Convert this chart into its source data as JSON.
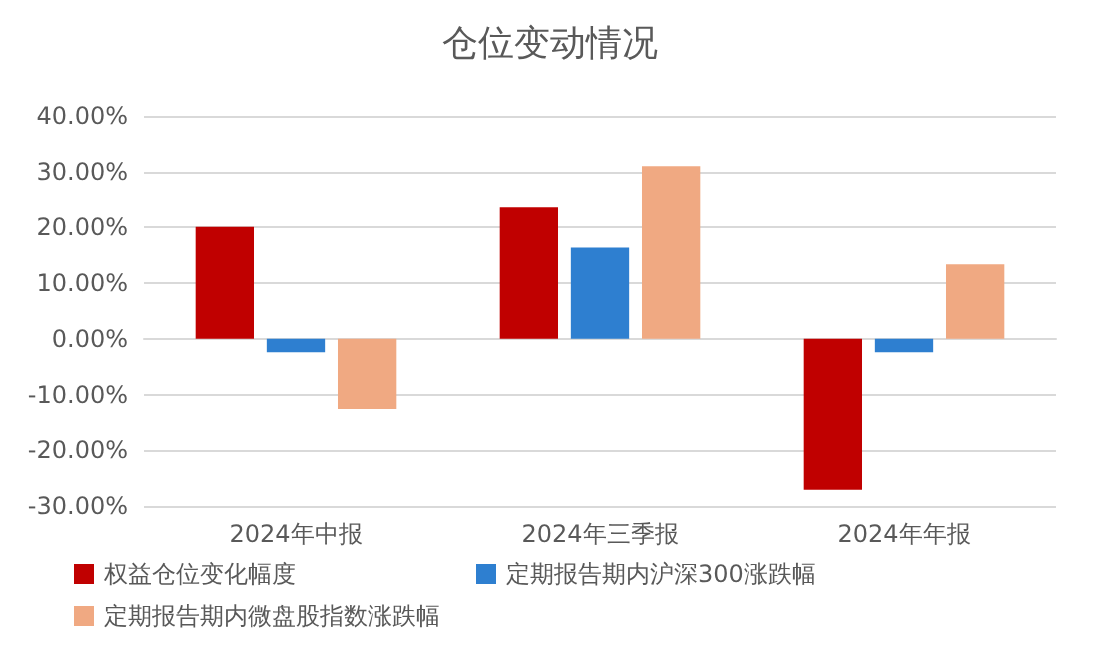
{
  "chart_data": {
    "type": "bar",
    "title": "仓位变动情况",
    "categories": [
      "2024年中报",
      "2024年三季报",
      "2024年年报"
    ],
    "series": [
      {
        "name": "权益仓位变化幅度",
        "color": "#c00000",
        "values": [
          20.1,
          23.6,
          -27.1
        ]
      },
      {
        "name": "定期报告期内沪深300涨跌幅",
        "color": "#2e7fd0",
        "values": [
          -2.4,
          16.4,
          -2.4
        ]
      },
      {
        "name": "定期报告期内微盘股指数涨跌幅",
        "color": "#f0a982",
        "values": [
          -12.6,
          31.0,
          13.4
        ]
      }
    ],
    "ylim": [
      -30,
      40
    ],
    "yticks": [
      {
        "value": -30,
        "label": "-30.00%"
      },
      {
        "value": -20,
        "label": "-20.00%"
      },
      {
        "value": -10,
        "label": "-10.00%"
      },
      {
        "value": 0,
        "label": "0.00%"
      },
      {
        "value": 10,
        "label": "10.00%"
      },
      {
        "value": 20,
        "label": "20.00%"
      },
      {
        "value": 30,
        "label": "30.00%"
      },
      {
        "value": 40,
        "label": "40.00%"
      }
    ],
    "grid": true,
    "legend": "bottom"
  }
}
